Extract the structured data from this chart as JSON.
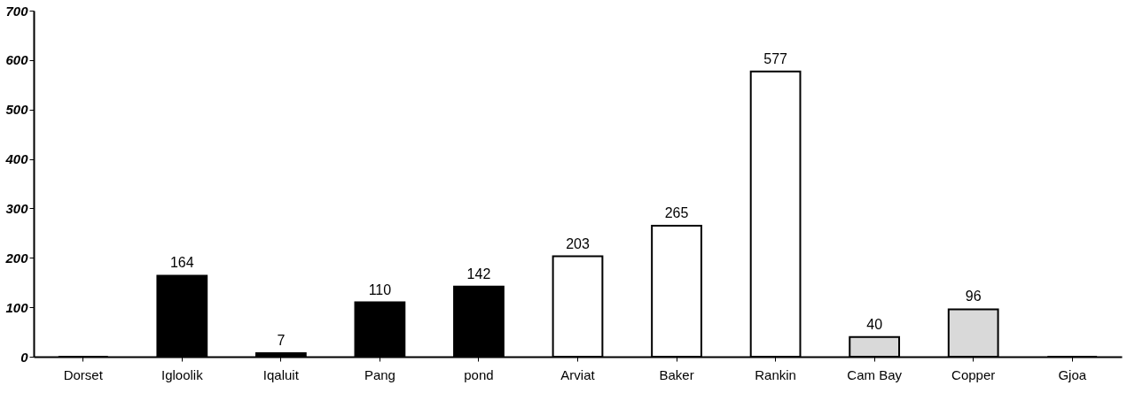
{
  "chart_data": {
    "type": "bar",
    "categories": [
      "Dorset",
      "Igloolik",
      "Iqaluit",
      "Pang",
      "pond",
      "Arviat",
      "Baker",
      "Rankin",
      "Cam  Bay",
      "Copper",
      "Gjoa"
    ],
    "values": [
      0,
      164,
      7,
      110,
      142,
      203,
      265,
      577,
      40,
      96,
      0
    ],
    "value_labels": [
      null,
      "164",
      "7",
      "110",
      "142",
      "203",
      "265",
      "577",
      "40",
      "96",
      null
    ],
    "colors": [
      "#000000",
      "#000000",
      "#000000",
      "#000000",
      "#000000",
      "#ffffff",
      "#ffffff",
      "#ffffff",
      "#d9d9d9",
      "#d9d9d9",
      "#d9d9d9"
    ],
    "ylim": [
      0,
      700
    ],
    "yticks": [
      0,
      100,
      200,
      300,
      400,
      500,
      600,
      700
    ],
    "grid": false
  }
}
